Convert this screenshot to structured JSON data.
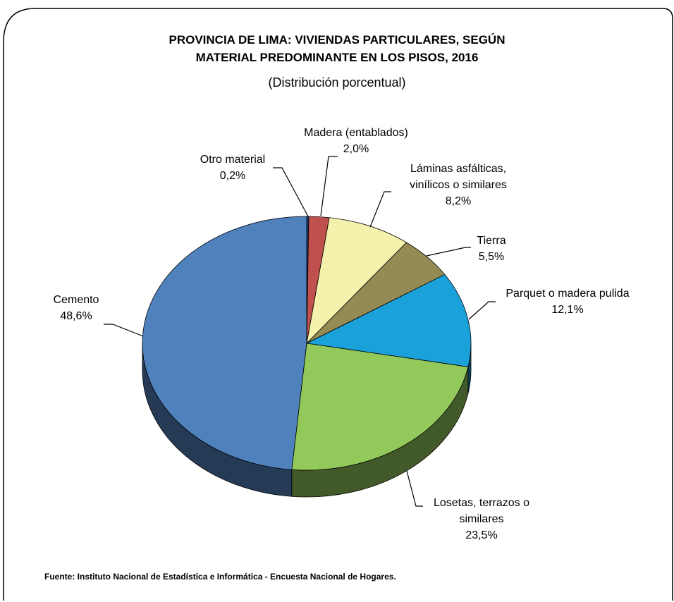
{
  "chart_data": {
    "type": "pie",
    "title": "PROVINCIA DE LIMA: VIVIENDAS PARTICULARES, SEGÚN\nMATERIAL PREDOMINANTE EN LOS PISOS, 2016",
    "subtitle": "(Distribución porcentual)",
    "categories": [
      "Otro material",
      "Madera (entablados)",
      "Láminas asfálticas,\nvinílicos o similares",
      "Tierra",
      "Parquet o madera pulida",
      "Losetas, terrazos o\nsimilares",
      "Cemento"
    ],
    "values": [
      0.2,
      2.0,
      8.2,
      5.5,
      12.1,
      23.5,
      48.6
    ],
    "value_labels": [
      "0,2%",
      "2,0%",
      "8,2%",
      "5,5%",
      "12,1%",
      "23,5%",
      "48,6%"
    ],
    "colors": [
      "#1f3a6e",
      "#c0504d",
      "#f3f1ab",
      "#948a54",
      "#1ba1d9",
      "#93c95b",
      "#4f81bd"
    ],
    "source": "Fuente: Instituto Nacional de Estadística e Informática - Encuesta Nacional de Hogares."
  }
}
